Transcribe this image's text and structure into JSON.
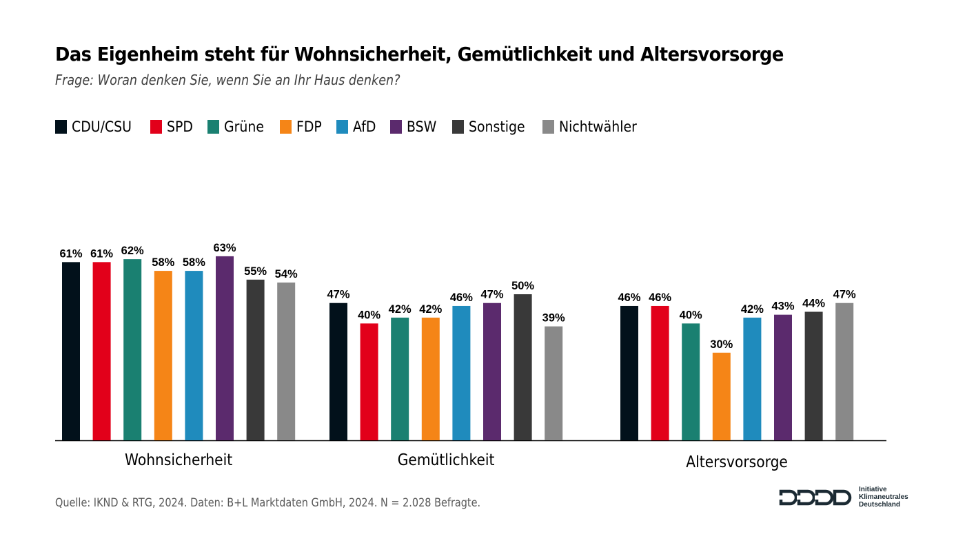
{
  "chart_data": {
    "type": "bar",
    "title": "Das Eigenheim steht für Wohnsicherheit, Gemütlichkeit und Altersvorsorge",
    "subtitle": "Frage: Woran denken Sie, wenn Sie an Ihr Haus denken?",
    "xlabel": "",
    "ylabel": "",
    "ylim": [
      0,
      70
    ],
    "grid": false,
    "legend_position": "top-left",
    "value_suffix": "%",
    "categories": [
      "Wohnsicherheit",
      "Gemütlichkeit",
      "Altersvorsorge"
    ],
    "series": [
      {
        "name": "CDU/CSU",
        "color": "#02111b",
        "values": [
          61,
          47,
          46
        ]
      },
      {
        "name": "SPD",
        "color": "#e2001a",
        "values": [
          61,
          40,
          46
        ]
      },
      {
        "name": "Grüne",
        "color": "#1a8071",
        "values": [
          62,
          42,
          40
        ]
      },
      {
        "name": "FDP",
        "color": "#f58517",
        "values": [
          58,
          42,
          30
        ]
      },
      {
        "name": "AfD",
        "color": "#1f8bbd",
        "values": [
          58,
          46,
          42
        ]
      },
      {
        "name": "BSW",
        "color": "#5b2a6d",
        "values": [
          63,
          47,
          43
        ]
      },
      {
        "name": "Sonstige",
        "color": "#393939",
        "values": [
          55,
          50,
          44
        ]
      },
      {
        "name": "Nichtwähler",
        "color": "#898989",
        "values": [
          54,
          39,
          47
        ]
      }
    ]
  },
  "footer": {
    "source": "Quelle: IKND & RTG, 2024. Daten: B+L  Marktdaten GmbH, 2024. N = 2.028 Befragte."
  },
  "logo": {
    "line1": "Initiative",
    "line2": "Klimaneutrales",
    "line3": "Deutschland"
  }
}
